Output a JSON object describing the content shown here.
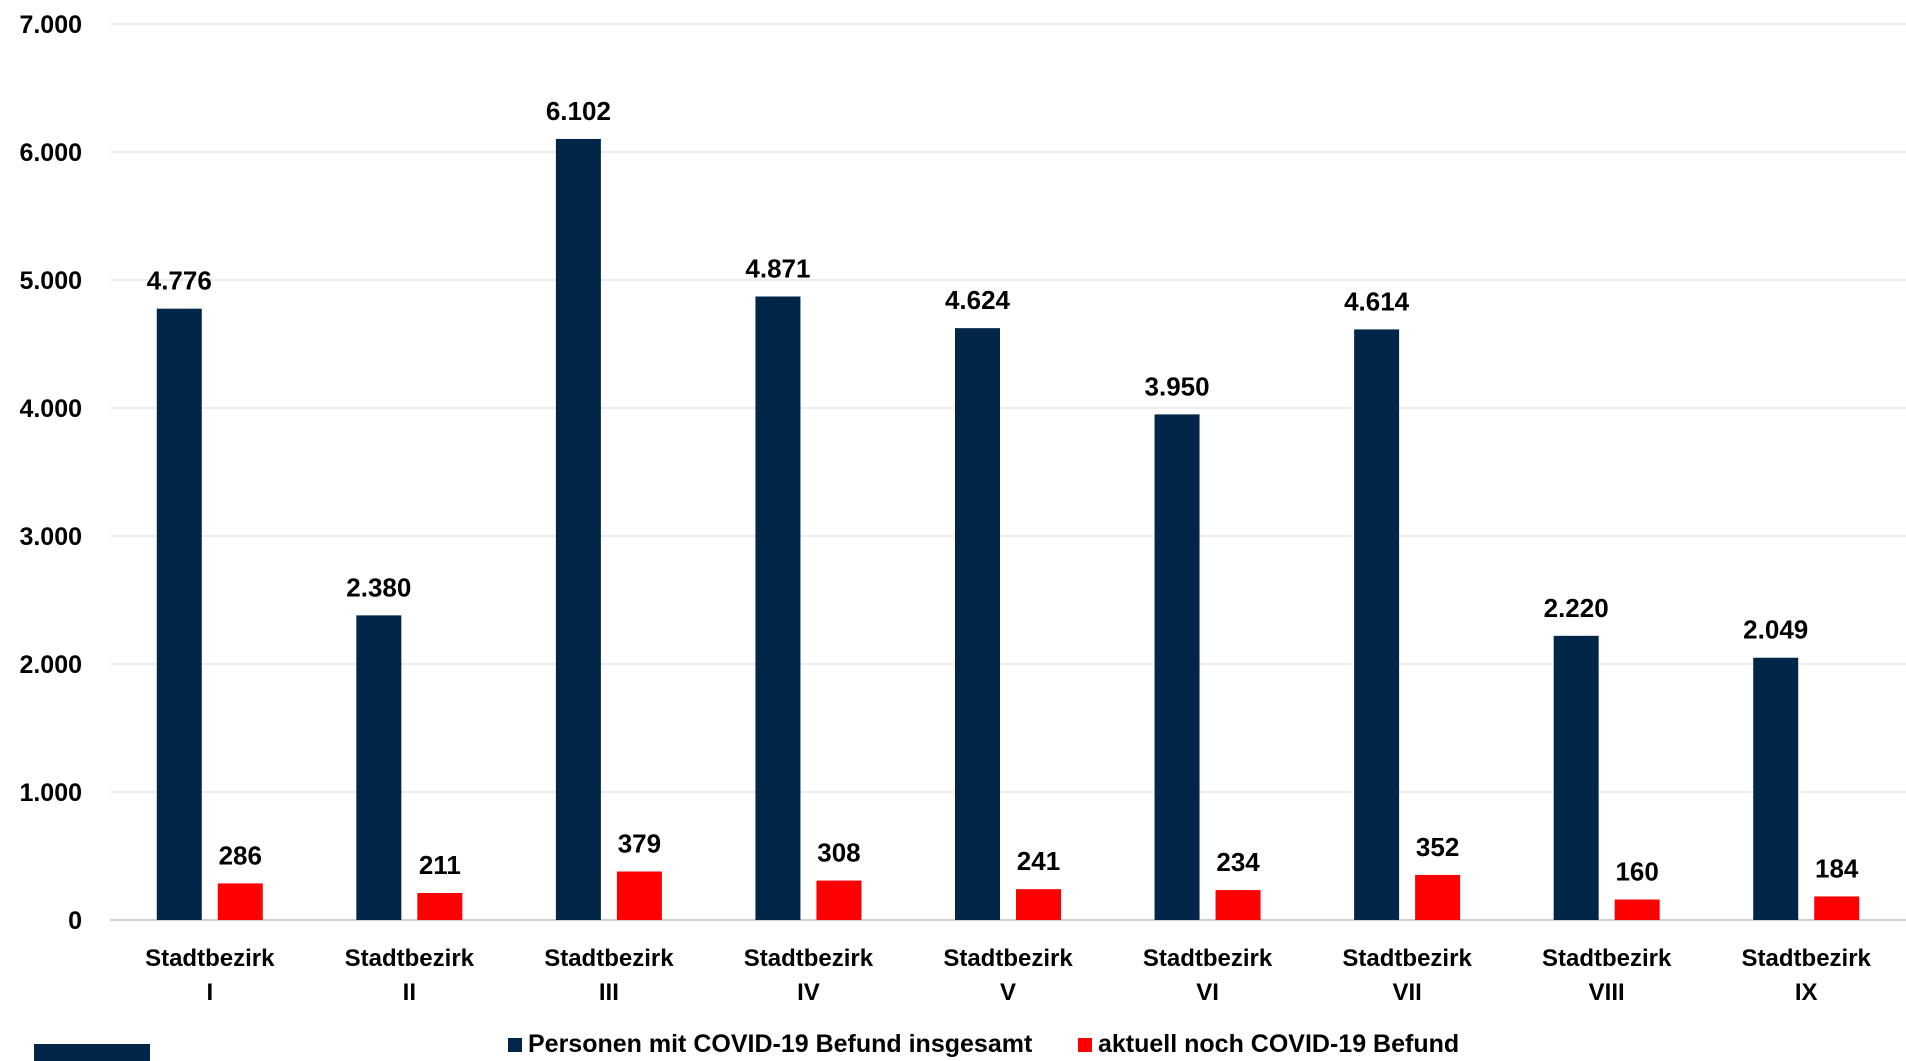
{
  "chart_data": {
    "type": "bar",
    "categories": [
      [
        "Stadtbezirk",
        "I"
      ],
      [
        "Stadtbezirk",
        "II"
      ],
      [
        "Stadtbezirk",
        "III"
      ],
      [
        "Stadtbezirk",
        "IV"
      ],
      [
        "Stadtbezirk",
        "V"
      ],
      [
        "Stadtbezirk",
        "VI"
      ],
      [
        "Stadtbezirk",
        "VII"
      ],
      [
        "Stadtbezirk",
        "VIII"
      ],
      [
        "Stadtbezirk",
        "IX"
      ]
    ],
    "series": [
      {
        "name": "Personen mit COVID-19 Befund insgesamt",
        "color": "#022648",
        "values": [
          4776,
          2380,
          6102,
          4871,
          4624,
          3950,
          4614,
          2220,
          2049
        ],
        "labels": [
          "4.776",
          "2.380",
          "6.102",
          "4.871",
          "4.624",
          "3.950",
          "4.614",
          "2.220",
          "2.049"
        ]
      },
      {
        "name": "aktuell noch COVID-19 Befund",
        "color": "#fe0000",
        "values": [
          286,
          211,
          379,
          308,
          241,
          234,
          352,
          160,
          184
        ],
        "labels": [
          "286",
          "211",
          "379",
          "308",
          "241",
          "234",
          "352",
          "160",
          "184"
        ]
      }
    ],
    "yticks": [
      {
        "value": 0,
        "label": "0"
      },
      {
        "value": 1000,
        "label": "1.000"
      },
      {
        "value": 2000,
        "label": "2.000"
      },
      {
        "value": 3000,
        "label": "3.000"
      },
      {
        "value": 4000,
        "label": "4.000"
      },
      {
        "value": 5000,
        "label": "5.000"
      },
      {
        "value": 6000,
        "label": "6.000"
      },
      {
        "value": 7000,
        "label": "7.000"
      }
    ],
    "ylim": [
      0,
      7000
    ],
    "grid": true,
    "legend_position": "bottom",
    "title": "",
    "xlabel": "",
    "ylabel": ""
  },
  "decor": {
    "corner_block_color": "#022648"
  }
}
